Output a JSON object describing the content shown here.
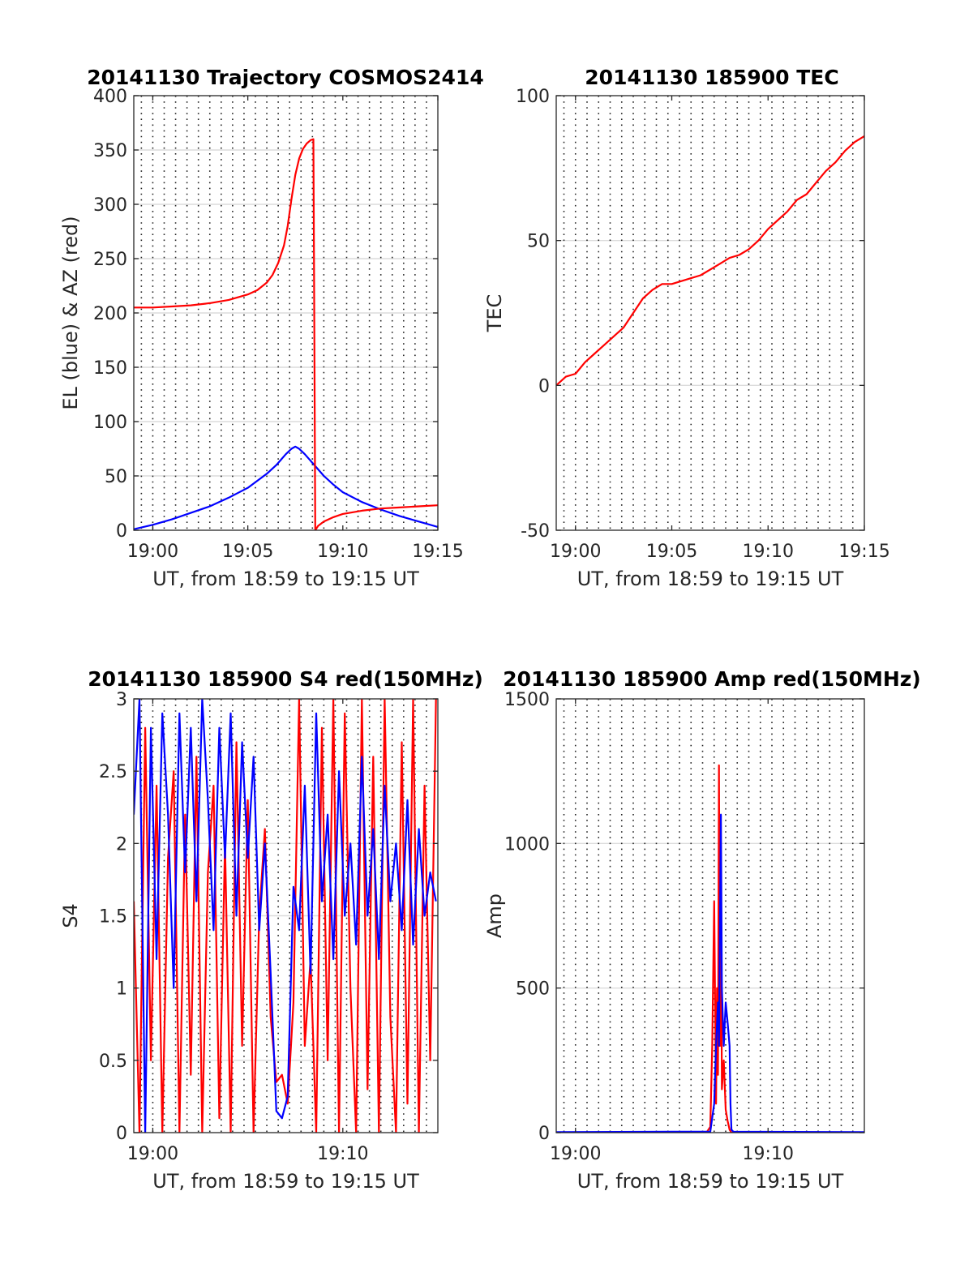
{
  "chart_data": [
    {
      "id": "trajectory",
      "type": "line",
      "title": "20141130 Trajectory COSMOS2414",
      "xlabel": "UT, from 18:59 to 19:15 UT",
      "ylabel": "EL (blue) & AZ (red)",
      "xlim": [
        -1,
        15
      ],
      "ylim": [
        0,
        400
      ],
      "x_unit": "minutes after 19:00 UT",
      "xticks": [
        0,
        5,
        10,
        15
      ],
      "xtick_labels": [
        "19:00",
        "19:05",
        "19:10",
        "19:15"
      ],
      "yticks": [
        0,
        50,
        100,
        150,
        200,
        250,
        300,
        350,
        400
      ],
      "ytick_labels": [
        "0",
        "50",
        "100",
        "150",
        "200",
        "250",
        "300",
        "350",
        "400"
      ],
      "vgrid_x": [
        -0.6,
        0,
        0.6,
        1.2,
        1.8,
        2.4,
        3.0,
        3.6,
        4.2,
        4.8,
        5.4,
        6.0,
        6.6,
        7.2,
        7.8,
        8.4,
        9.0,
        9.6,
        10.2,
        10.8,
        11.4,
        12.0,
        12.6,
        13.2,
        13.8,
        14.4
      ],
      "grid": true,
      "series": [
        {
          "name": "EL",
          "color": "#0000ff",
          "x": [
            -1,
            0,
            1,
            2,
            3,
            4,
            5,
            6,
            6.5,
            7,
            7.3,
            7.5,
            7.7,
            8,
            8.5,
            9,
            9.5,
            10,
            11,
            12,
            13,
            14,
            15
          ],
          "y": [
            1,
            5,
            10,
            16,
            22,
            30,
            39,
            52,
            60,
            70,
            75,
            77,
            75,
            70,
            60,
            50,
            42,
            35,
            26,
            19,
            13,
            8,
            3
          ]
        },
        {
          "name": "AZ",
          "color": "#ff0000",
          "x": [
            -1,
            0,
            1,
            2,
            3,
            4,
            5,
            5.5,
            6,
            6.3,
            6.6,
            6.9,
            7.1,
            7.3,
            7.5,
            7.7,
            7.9,
            8.1,
            8.3,
            8.45,
            8.5,
            8.55,
            8.7,
            9,
            9.5,
            10,
            11,
            12,
            13,
            14,
            15
          ],
          "y": [
            205,
            205,
            206,
            207,
            209,
            212,
            217,
            221,
            228,
            235,
            246,
            262,
            280,
            305,
            327,
            342,
            351,
            356,
            359,
            360,
            180,
            0,
            4,
            8,
            12,
            15,
            18,
            20,
            21,
            22,
            23
          ]
        }
      ]
    },
    {
      "id": "tec",
      "type": "line",
      "title": "20141130 185900 TEC",
      "xlabel": "UT, from 18:59 to 19:15 UT",
      "ylabel": "TEC",
      "xlim": [
        -1,
        15
      ],
      "ylim": [
        -50,
        100
      ],
      "x_unit": "minutes after 19:00 UT",
      "xticks": [
        0,
        5,
        10,
        15
      ],
      "xtick_labels": [
        "19:00",
        "19:05",
        "19:10",
        "19:15"
      ],
      "yticks": [
        -50,
        0,
        50,
        100
      ],
      "ytick_labels": [
        "-50",
        "0",
        "50",
        "100"
      ],
      "vgrid_x": [
        -0.6,
        0,
        0.6,
        1.2,
        1.8,
        2.4,
        3.0,
        3.6,
        4.2,
        4.8,
        5.4,
        6.0,
        6.6,
        7.2,
        7.8,
        8.4,
        9.0,
        9.6,
        10.2,
        10.8,
        11.4,
        12.0,
        12.6,
        13.2,
        13.8,
        14.4
      ],
      "grid": true,
      "series": [
        {
          "name": "TEC",
          "color": "#ff0000",
          "x": [
            -1,
            -0.5,
            0,
            0.5,
            1,
            1.5,
            2,
            2.5,
            3,
            3.5,
            4,
            4.5,
            5,
            5.5,
            6,
            6.5,
            7,
            7.5,
            8,
            8.5,
            9,
            9.5,
            10,
            10.5,
            11,
            11.5,
            12,
            12.5,
            13,
            13.5,
            14,
            14.5,
            15
          ],
          "y": [
            0,
            3,
            4,
            8,
            11,
            14,
            17,
            20,
            25,
            30,
            33,
            35,
            35,
            36,
            37,
            38,
            40,
            42,
            44,
            45,
            47,
            50,
            54,
            57,
            60,
            64,
            66,
            70,
            74,
            77,
            81,
            84,
            86
          ]
        }
      ]
    },
    {
      "id": "s4",
      "type": "line",
      "title": "20141130 185900 S4 red(150MHz)",
      "xlabel": "UT, from 18:59 to 19:15 UT",
      "ylabel": "S4",
      "xlim": [
        -1,
        15
      ],
      "view_xlim": [
        -1,
        15
      ],
      "ylim": [
        0,
        3
      ],
      "x_unit": "minutes after 19:00 UT",
      "xticks": [
        0,
        10
      ],
      "xtick_labels": [
        "19:00",
        "19:10"
      ],
      "yticks": [
        0,
        0.5,
        1,
        1.5,
        2,
        2.5,
        3
      ],
      "ytick_labels": [
        "0",
        "0.5",
        "1",
        "1.5",
        "2",
        "2.5",
        "3"
      ],
      "grid": true,
      "series": [
        {
          "name": "S4 red",
          "color": "#ff0000",
          "x": [
            -1,
            -0.7,
            -0.4,
            -0.1,
            0.2,
            0.5,
            0.8,
            1.1,
            1.4,
            1.7,
            2.0,
            2.3,
            2.6,
            2.9,
            3.2,
            3.5,
            3.8,
            4.1,
            4.4,
            4.7,
            5.0,
            5.3,
            5.6,
            5.9,
            6.2,
            6.5,
            6.8,
            7.1,
            7.4,
            7.7,
            8.0,
            8.3,
            8.6,
            8.9,
            9.2,
            9.5,
            9.8,
            10.1,
            10.4,
            10.7,
            11.0,
            11.3,
            11.6,
            11.9,
            12.2,
            12.5,
            12.8,
            13.1,
            13.4,
            13.7,
            14.0,
            14.3,
            14.6,
            14.9
          ],
          "y": [
            1.6,
            0,
            2.8,
            0.5,
            2.4,
            0,
            1.9,
            2.5,
            0,
            2.2,
            0.4,
            2.6,
            0,
            1.8,
            2.4,
            0.1,
            2.0,
            0,
            2.7,
            0.6,
            2.3,
            0,
            1.5,
            2.1,
            0.8,
            0.35,
            0.4,
            0.2,
            0.9,
            3.0,
            0.6,
            1.2,
            0,
            2.8,
            0.5,
            3.0,
            0,
            2.9,
            1.0,
            0,
            3.0,
            0.3,
            2.6,
            0,
            3.0,
            0.8,
            0,
            2.7,
            0.2,
            3.0,
            0,
            2.4,
            0.5,
            3.0
          ]
        },
        {
          "name": "S4 blue",
          "color": "#0000ff",
          "x": [
            -1,
            -0.7,
            -0.4,
            -0.1,
            0.2,
            0.5,
            0.8,
            1.1,
            1.4,
            1.7,
            2.0,
            2.3,
            2.6,
            2.9,
            3.2,
            3.5,
            3.8,
            4.1,
            4.4,
            4.7,
            5.0,
            5.3,
            5.6,
            5.9,
            6.2,
            6.5,
            6.8,
            7.1,
            7.4,
            7.7,
            8.0,
            8.3,
            8.6,
            8.9,
            9.2,
            9.5,
            9.8,
            10.1,
            10.4,
            10.7,
            11.0,
            11.3,
            11.6,
            11.9,
            12.2,
            12.5,
            12.8,
            13.1,
            13.4,
            13.7,
            14.0,
            14.3,
            14.6,
            14.9
          ],
          "y": [
            2.2,
            3.0,
            0.0,
            2.8,
            1.2,
            2.9,
            2.2,
            1.0,
            2.9,
            1.8,
            2.8,
            1.6,
            3.0,
            2.3,
            1.4,
            2.8,
            1.9,
            2.9,
            1.5,
            2.7,
            1.9,
            2.6,
            1.4,
            2.0,
            1.1,
            0.15,
            0.1,
            0.25,
            1.7,
            1.4,
            2.4,
            1.1,
            2.9,
            1.6,
            2.2,
            1.2,
            2.5,
            1.5,
            2.0,
            1.3,
            2.6,
            1.5,
            2.1,
            1.2,
            2.4,
            1.6,
            2.0,
            1.4,
            2.3,
            1.3,
            2.1,
            1.5,
            1.8,
            1.6
          ]
        }
      ]
    },
    {
      "id": "amp",
      "type": "line",
      "title": "20141130 185900 Amp red(150MHz)",
      "xlabel": "UT, from 18:59 to 19:15 UT",
      "ylabel": "Amp",
      "xlim": [
        -1,
        15
      ],
      "ylim": [
        0,
        1500
      ],
      "x_unit": "minutes after 19:00 UT",
      "xticks": [
        0,
        10
      ],
      "xtick_labels": [
        "19:00",
        "19:10"
      ],
      "yticks": [
        0,
        500,
        1000,
        1500
      ],
      "ytick_labels": [
        "0",
        "500",
        "1000",
        "1500"
      ],
      "vgrid_x": [
        -0.6,
        0,
        0.6,
        1.2,
        1.8,
        2.4,
        3.0,
        3.6,
        4.2,
        4.8,
        5.4,
        6.0,
        6.6,
        7.2,
        7.8,
        8.4,
        9.0,
        9.6,
        10.2,
        10.8,
        11.4,
        12.0,
        12.6,
        13.2,
        13.8,
        14.4
      ],
      "grid": true,
      "series": [
        {
          "name": "Amp red",
          "color": "#ff0000",
          "x": [
            -1,
            5,
            6.8,
            7.0,
            7.1,
            7.2,
            7.3,
            7.35,
            7.4,
            7.45,
            7.5,
            7.55,
            7.6,
            7.7,
            7.8,
            7.9,
            8.0,
            8.1,
            15
          ],
          "y": [
            0,
            0,
            0,
            20,
            300,
            800,
            100,
            500,
            200,
            1270,
            300,
            900,
            150,
            250,
            80,
            40,
            10,
            0,
            0
          ]
        },
        {
          "name": "Amp blue",
          "color": "#0000ff",
          "x": [
            -1,
            5,
            7.0,
            7.2,
            7.3,
            7.4,
            7.45,
            7.5,
            7.55,
            7.6,
            7.65,
            7.7,
            7.8,
            7.9,
            8.0,
            8.05,
            8.1,
            8.2,
            15
          ],
          "y": [
            2,
            3,
            3,
            100,
            300,
            450,
            300,
            700,
            1100,
            500,
            400,
            300,
            450,
            380,
            300,
            100,
            10,
            3,
            2
          ]
        }
      ]
    }
  ]
}
